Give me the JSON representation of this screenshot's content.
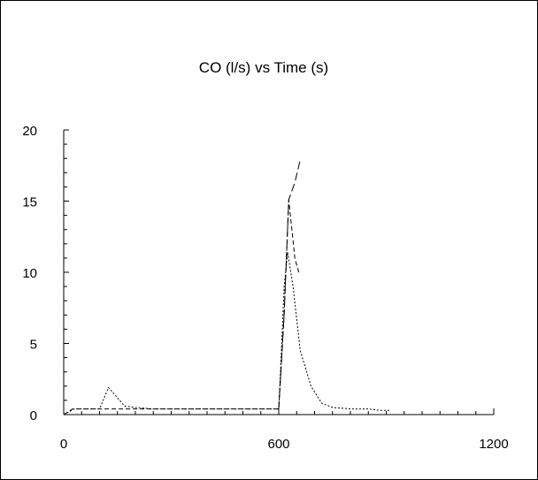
{
  "chart_data": {
    "type": "line",
    "title": "CO (l/s) vs Time (s)",
    "xlabel": "",
    "ylabel": "",
    "xlim": [
      0,
      1200
    ],
    "ylim": [
      0,
      20
    ],
    "x_ticks": [
      0,
      600,
      1200
    ],
    "y_ticks": [
      0,
      5,
      10,
      15,
      20
    ],
    "grid": false,
    "legend": "none",
    "series": [
      {
        "style": "dotted",
        "color": "#000000",
        "points": [
          [
            0,
            0
          ],
          [
            30,
            0.4
          ],
          [
            100,
            0.4
          ],
          [
            125,
            1.9
          ],
          [
            170,
            0.6
          ],
          [
            200,
            0.5
          ],
          [
            250,
            0.4
          ],
          [
            400,
            0.4
          ],
          [
            500,
            0.4
          ],
          [
            600,
            0.4
          ],
          [
            605,
            3
          ],
          [
            615,
            9
          ],
          [
            625,
            11.4
          ],
          [
            640,
            9
          ],
          [
            660,
            4.5
          ],
          [
            690,
            2
          ],
          [
            720,
            0.8
          ],
          [
            750,
            0.5
          ],
          [
            800,
            0.4
          ],
          [
            850,
            0.4
          ],
          [
            880,
            0.3
          ],
          [
            910,
            0.3
          ]
        ]
      },
      {
        "style": "dashed",
        "color": "#000000",
        "points": [
          [
            0,
            0
          ],
          [
            25,
            0.4
          ],
          [
            100,
            0.4
          ],
          [
            300,
            0.4
          ],
          [
            500,
            0.4
          ],
          [
            600,
            0.4
          ],
          [
            615,
            7
          ],
          [
            628,
            15.1
          ],
          [
            645,
            11
          ],
          [
            657,
            9.9
          ]
        ]
      },
      {
        "style": "long-dashed",
        "color": "#000000",
        "points": [
          [
            600,
            0.4
          ],
          [
            615,
            7
          ],
          [
            628,
            15.1
          ],
          [
            645,
            16.3
          ],
          [
            660,
            17.9
          ]
        ]
      }
    ]
  }
}
